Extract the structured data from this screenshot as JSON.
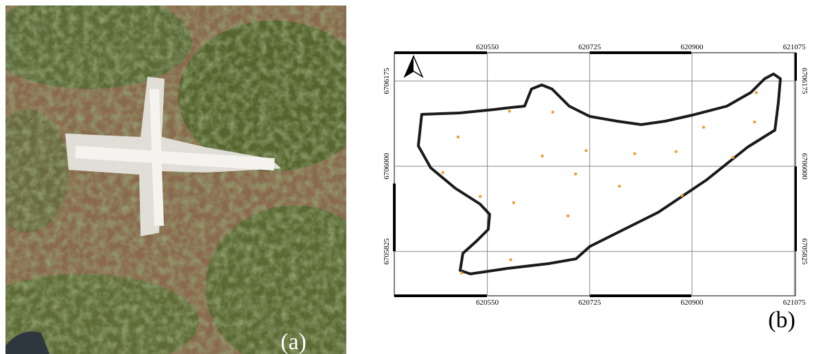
{
  "panel_labels": {
    "photo": "(a)",
    "map": "(b)"
  },
  "chart_data": {
    "type": "scatter",
    "xlim": [
      620391,
      621077
    ],
    "ylim": [
      6705734,
      6706233
    ],
    "xticks": [
      620550,
      620725,
      620900,
      621075
    ],
    "yticks": [
      6705825,
      6706000,
      6706175
    ],
    "grid": true,
    "series": [
      {
        "color": "#f0a030",
        "x": [
          620588,
          620662,
          620500,
          620644,
          620719,
          620802,
          620873,
          620920,
          621007,
          621010,
          620970,
          620474,
          620701,
          620776,
          620538,
          620595,
          620883,
          620688,
          620590,
          620506
        ],
        "values": [
          6706113,
          6706111,
          6706060,
          6706021,
          6706032,
          6706026,
          6706030,
          6706080,
          6706091,
          6706151,
          6706018,
          6705987,
          6705984,
          6705959,
          6705938,
          6705925,
          6705940,
          6705898,
          6705808,
          6705781
        ]
      }
    ]
  }
}
